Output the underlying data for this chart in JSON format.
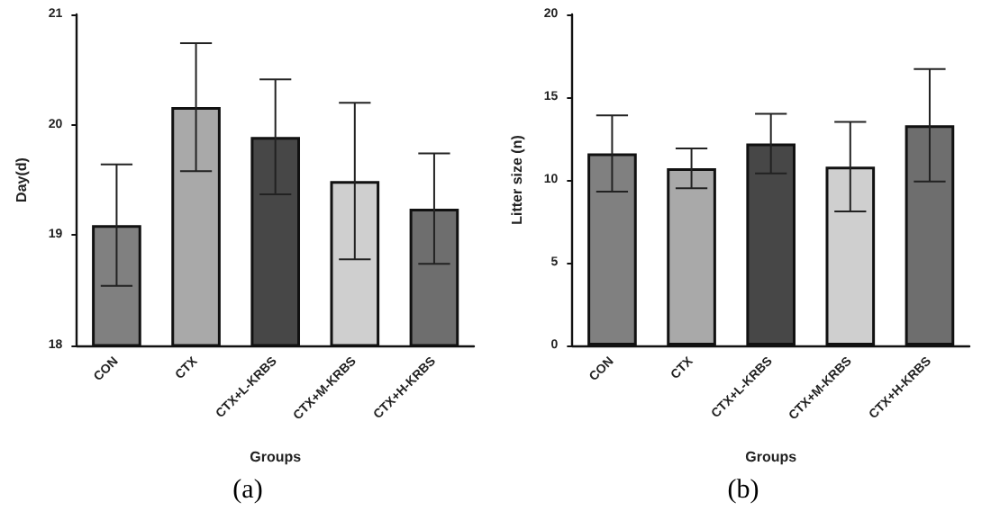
{
  "chart_data": [
    {
      "type": "bar",
      "xlabel": "Groups",
      "ylabel": "Day(d)",
      "annotations": [
        "(a)"
      ],
      "categories": [
        "CON",
        "CTX",
        "CTX+L-KRBS",
        "CTX+M-KRBS",
        "CTX+H-KRBS"
      ],
      "values": [
        19.09,
        20.16,
        19.89,
        19.49,
        19.24
      ],
      "errors": [
        0.55,
        0.58,
        0.52,
        0.71,
        0.5
      ],
      "colors": [
        "#808080",
        "#a9a9a9",
        "#474747",
        "#cfcfcf",
        "#6e6e6e"
      ],
      "ylim": [
        18,
        21
      ],
      "yticks": [
        18,
        19,
        20,
        21
      ],
      "grid": false
    },
    {
      "type": "bar",
      "xlabel": "Groups",
      "ylabel": "Litter size (n)",
      "annotations": [
        "(b)"
      ],
      "categories": [
        "CON",
        "CTX",
        "CTX+L-KRBS",
        "CTX+M-KRBS",
        "CTX+H-KRBS"
      ],
      "values": [
        11.6,
        10.7,
        12.2,
        10.8,
        13.3
      ],
      "errors": [
        2.3,
        1.2,
        1.8,
        2.7,
        3.4
      ],
      "colors": [
        "#808080",
        "#a9a9a9",
        "#474747",
        "#cfcfcf",
        "#6e6e6e"
      ],
      "ylim": [
        0,
        20
      ],
      "yticks": [
        0,
        5,
        10,
        15,
        20
      ],
      "grid": false
    }
  ]
}
